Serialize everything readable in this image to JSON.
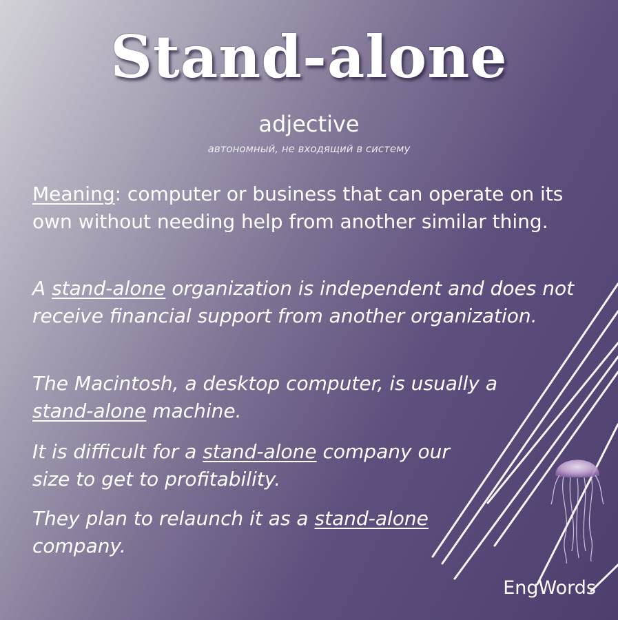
{
  "word": "Stand-alone",
  "part_of_speech": "adjective",
  "translation": "автономный, не входящий в систему",
  "meaning": {
    "label": "Meaning",
    "separator": ":",
    "text": " computer or business that can operate on its own without needing help from another similar thing."
  },
  "examples": [
    {
      "before": "A ",
      "highlight": "stand-alone",
      "after": " organization is independent and does not receive financial support from another organization."
    },
    {
      "before": "The Macintosh, a desktop computer, is usually a ",
      "highlight": "stand-alone",
      "after": " machine."
    },
    {
      "before": "It is difficult for a ",
      "highlight": "stand-alone",
      "after": " company our size to get to profitability."
    },
    {
      "before": "They plan to relaunch it as a ",
      "highlight": "stand-alone",
      "after": " company."
    }
  ],
  "brand": "EngWords",
  "decoration": {
    "icon": "jellyfish-icon",
    "lines": "diagonal-lines"
  },
  "colors": {
    "gradient_light": "#d3d2d8",
    "gradient_dark": "#4d3e6e",
    "text": "#ffffff"
  }
}
